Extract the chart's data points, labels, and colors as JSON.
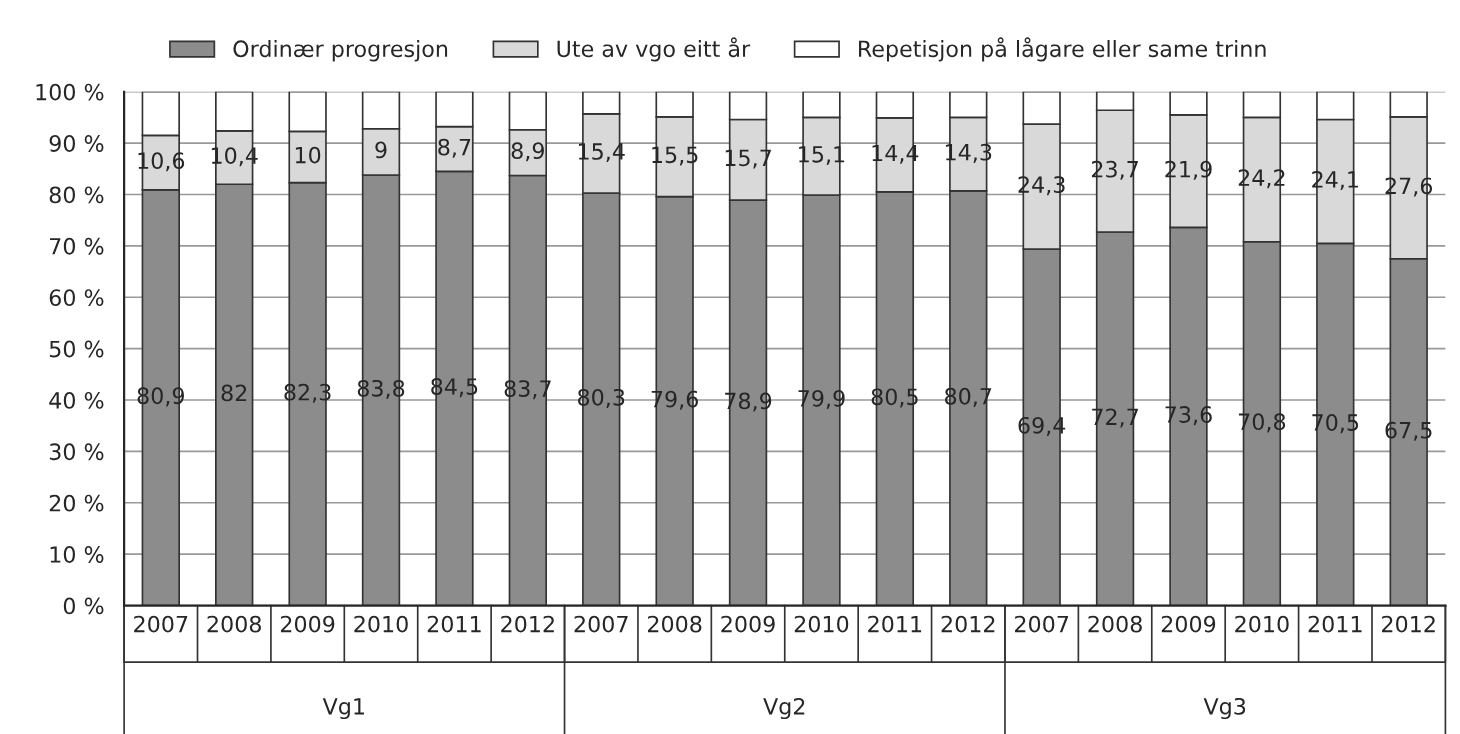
{
  "chart_data": {
    "type": "bar",
    "stacked": true,
    "categories": [
      "2007",
      "2008",
      "2009",
      "2010",
      "2011",
      "2012",
      "2007",
      "2008",
      "2009",
      "2010",
      "2011",
      "2012",
      "2007",
      "2008",
      "2009",
      "2010",
      "2011",
      "2012"
    ],
    "series": [
      {
        "name": "Ordinær progresjon",
        "color": "#8c8c8c",
        "values": [
          80.9,
          82,
          82.3,
          83.8,
          84.5,
          83.7,
          80.3,
          79.6,
          78.9,
          79.9,
          80.5,
          80.7,
          69.4,
          72.7,
          73.6,
          70.8,
          70.5,
          67.5
        ],
        "value_labels": [
          "80,9",
          "82",
          "82,3",
          "83,8",
          "84,5",
          "83,7",
          "80,3",
          "79,6",
          "78,9",
          "79,9",
          "80,5",
          "80,7",
          "69,4",
          "72,7",
          "73,6",
          "70,8",
          "70,5",
          "67,5"
        ]
      },
      {
        "name": "Ute av vgo eitt år",
        "color": "#d9d9d9",
        "values": [
          10.6,
          10.4,
          10,
          9,
          8.7,
          8.9,
          15.4,
          15.5,
          15.7,
          15.1,
          14.4,
          14.3,
          24.3,
          23.7,
          21.9,
          24.2,
          24.1,
          27.6
        ],
        "value_labels": [
          "10,6",
          "10,4",
          "10",
          "9",
          "8,7",
          "8,9",
          "15,4",
          "15,5",
          "15,7",
          "15,1",
          "14,4",
          "14,3",
          "24,3",
          "23,7",
          "21,9",
          "24,2",
          "24,1",
          "27,6"
        ]
      },
      {
        "name": "Repetisjon på lågare eller same trinn",
        "color": "#ffffff",
        "values": [
          8.5,
          7.6,
          7.7,
          7.2,
          6.8,
          7.4,
          4.3,
          4.9,
          5.4,
          5.0,
          5.1,
          5.0,
          6.3,
          3.6,
          4.5,
          5.0,
          5.4,
          4.9
        ]
      }
    ],
    "annotations": [
      "Vg1",
      "Vg2",
      "Vg3"
    ],
    "ylim": [
      0,
      100
    ],
    "yticks": [
      {
        "value": 0,
        "label": "0 %"
      },
      {
        "value": 10,
        "label": "10 %"
      },
      {
        "value": 20,
        "label": "20 %"
      },
      {
        "value": 30,
        "label": "30 %"
      },
      {
        "value": 40,
        "label": "40 %"
      },
      {
        "value": 50,
        "label": "50 %"
      },
      {
        "value": 60,
        "label": "60 %"
      },
      {
        "value": 70,
        "label": "70 %"
      },
      {
        "value": 80,
        "label": "80 %"
      },
      {
        "value": 90,
        "label": "90 %"
      },
      {
        "value": 100,
        "label": "100 %"
      }
    ],
    "grid": "y",
    "legend": "top"
  }
}
